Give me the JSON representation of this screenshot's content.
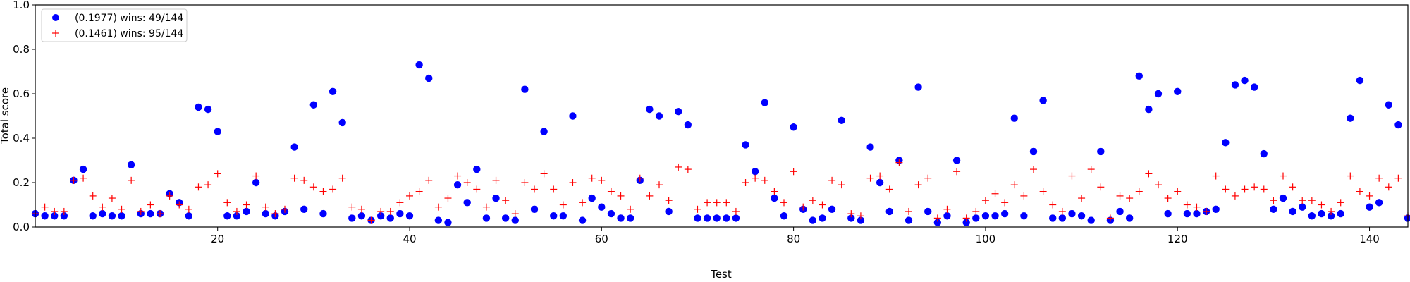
{
  "chart_data": {
    "type": "scatter",
    "xlabel": "Test",
    "ylabel": "Total score",
    "xlim": [
      1,
      144
    ],
    "ylim": [
      0,
      1.0
    ],
    "x_ticks": [
      20,
      40,
      60,
      80,
      100,
      120,
      140
    ],
    "y_ticks": [
      0.0,
      0.2,
      0.4,
      0.6,
      0.8,
      1.0
    ],
    "x_tick_labels": [
      "20",
      "40",
      "60",
      "80",
      "100",
      "120",
      "140"
    ],
    "y_tick_labels": [
      "0.0",
      "0.2",
      "0.4",
      "0.6",
      "0.8",
      "1.0"
    ],
    "grid": false,
    "legend_position": "top-left",
    "legend": [
      {
        "label": "(0.1977) wins: 49/144",
        "marker": "circle",
        "color": "#0000ff"
      },
      {
        "label": "(0.1461) wins: 95/144",
        "marker": "plus",
        "color": "#ff0000"
      }
    ],
    "series": [
      {
        "label": "(0.1977) wins: 49/144",
        "marker": "circle",
        "color": "#0000ff",
        "x": [
          1,
          2,
          3,
          4,
          5,
          6,
          7,
          8,
          9,
          10,
          11,
          12,
          13,
          14,
          15,
          16,
          17,
          18,
          19,
          20,
          21,
          22,
          23,
          24,
          25,
          26,
          27,
          28,
          29,
          30,
          31,
          32,
          33,
          34,
          35,
          36,
          37,
          38,
          39,
          40,
          41,
          42,
          43,
          44,
          45,
          46,
          47,
          48,
          49,
          50,
          51,
          52,
          53,
          54,
          55,
          56,
          57,
          58,
          59,
          60,
          61,
          62,
          63,
          64,
          65,
          66,
          67,
          68,
          69,
          70,
          71,
          72,
          73,
          74,
          75,
          76,
          77,
          78,
          79,
          80,
          81,
          82,
          83,
          84,
          85,
          86,
          87,
          88,
          89,
          90,
          91,
          92,
          93,
          94,
          95,
          96,
          97,
          98,
          99,
          100,
          101,
          102,
          103,
          104,
          105,
          106,
          107,
          108,
          109,
          110,
          111,
          112,
          113,
          114,
          115,
          116,
          117,
          118,
          119,
          120,
          121,
          122,
          123,
          124,
          125,
          126,
          127,
          128,
          129,
          130,
          131,
          132,
          133,
          134,
          135,
          136,
          137,
          138,
          139,
          140,
          141,
          142,
          143,
          144
        ],
        "y": [
          0.06,
          0.05,
          0.05,
          0.05,
          0.21,
          0.26,
          0.05,
          0.06,
          0.05,
          0.05,
          0.28,
          0.06,
          0.06,
          0.06,
          0.15,
          0.11,
          0.05,
          0.54,
          0.53,
          0.43,
          0.05,
          0.05,
          0.07,
          0.2,
          0.06,
          0.05,
          0.07,
          0.36,
          0.08,
          0.55,
          0.06,
          0.61,
          0.47,
          0.04,
          0.05,
          0.03,
          0.05,
          0.04,
          0.06,
          0.05,
          0.73,
          0.67,
          0.03,
          0.02,
          0.19,
          0.11,
          0.26,
          0.04,
          0.13,
          0.04,
          0.03,
          0.62,
          0.08,
          0.43,
          0.05,
          0.05,
          0.5,
          0.03,
          0.13,
          0.09,
          0.06,
          0.04,
          0.04,
          0.21,
          0.53,
          0.5,
          0.07,
          0.52,
          0.46,
          0.04,
          0.04,
          0.04,
          0.04,
          0.04,
          0.37,
          0.25,
          0.56,
          0.13,
          0.05,
          0.45,
          0.08,
          0.03,
          0.04,
          0.08,
          0.48,
          0.04,
          0.03,
          0.36,
          0.2,
          0.07,
          0.3,
          0.03,
          0.63,
          0.07,
          0.02,
          0.05,
          0.3,
          0.02,
          0.04,
          0.05,
          0.05,
          0.06,
          0.49,
          0.05,
          0.34,
          0.57,
          0.04,
          0.04,
          0.06,
          0.05,
          0.03,
          0.34,
          0.03,
          0.07,
          0.04,
          0.68,
          0.53,
          0.6,
          0.06,
          0.61,
          0.06,
          0.06,
          0.07,
          0.08,
          0.38,
          0.64,
          0.66,
          0.63,
          0.33,
          0.08,
          0.13,
          0.07,
          0.09,
          0.05,
          0.06,
          0.05,
          0.06,
          0.49,
          0.66,
          0.09,
          0.11,
          0.55,
          0.46,
          0.04
        ]
      },
      {
        "label": "(0.1461) wins: 95/144",
        "marker": "plus",
        "color": "#ff0000",
        "x": [
          1,
          2,
          3,
          4,
          5,
          6,
          7,
          8,
          9,
          10,
          11,
          12,
          13,
          14,
          15,
          16,
          17,
          18,
          19,
          20,
          21,
          22,
          23,
          24,
          25,
          26,
          27,
          28,
          29,
          30,
          31,
          32,
          33,
          34,
          35,
          36,
          37,
          38,
          39,
          40,
          41,
          42,
          43,
          44,
          45,
          46,
          47,
          48,
          49,
          50,
          51,
          52,
          53,
          54,
          55,
          56,
          57,
          58,
          59,
          60,
          61,
          62,
          63,
          64,
          65,
          66,
          67,
          68,
          69,
          70,
          71,
          72,
          73,
          74,
          75,
          76,
          77,
          78,
          79,
          80,
          81,
          82,
          83,
          84,
          85,
          86,
          87,
          88,
          89,
          90,
          91,
          92,
          93,
          94,
          95,
          96,
          97,
          98,
          99,
          100,
          101,
          102,
          103,
          104,
          105,
          106,
          107,
          108,
          109,
          110,
          111,
          112,
          113,
          114,
          115,
          116,
          117,
          118,
          119,
          120,
          121,
          122,
          123,
          124,
          125,
          126,
          127,
          128,
          129,
          130,
          131,
          132,
          133,
          134,
          135,
          136,
          137,
          138,
          139,
          140,
          141,
          142,
          143,
          144
        ],
        "y": [
          0.06,
          0.09,
          0.07,
          0.07,
          0.21,
          0.22,
          0.14,
          0.09,
          0.13,
          0.08,
          0.21,
          0.07,
          0.1,
          0.06,
          0.14,
          0.1,
          0.08,
          0.18,
          0.19,
          0.24,
          0.11,
          0.07,
          0.1,
          0.23,
          0.09,
          0.06,
          0.08,
          0.22,
          0.21,
          0.18,
          0.16,
          0.17,
          0.22,
          0.09,
          0.08,
          0.03,
          0.07,
          0.07,
          0.11,
          0.14,
          0.16,
          0.21,
          0.09,
          0.13,
          0.23,
          0.2,
          0.17,
          0.09,
          0.21,
          0.12,
          0.06,
          0.2,
          0.17,
          0.24,
          0.17,
          0.1,
          0.2,
          0.11,
          0.22,
          0.21,
          0.16,
          0.14,
          0.08,
          0.22,
          0.14,
          0.19,
          0.12,
          0.27,
          0.26,
          0.08,
          0.11,
          0.11,
          0.11,
          0.07,
          0.2,
          0.22,
          0.21,
          0.16,
          0.11,
          0.25,
          0.09,
          0.12,
          0.1,
          0.21,
          0.19,
          0.06,
          0.05,
          0.22,
          0.23,
          0.17,
          0.29,
          0.07,
          0.19,
          0.22,
          0.04,
          0.08,
          0.25,
          0.04,
          0.07,
          0.12,
          0.15,
          0.11,
          0.19,
          0.14,
          0.26,
          0.16,
          0.1,
          0.07,
          0.23,
          0.13,
          0.26,
          0.18,
          0.04,
          0.14,
          0.13,
          0.16,
          0.24,
          0.19,
          0.13,
          0.16,
          0.1,
          0.09,
          0.07,
          0.23,
          0.17,
          0.14,
          0.17,
          0.18,
          0.17,
          0.12,
          0.23,
          0.18,
          0.12,
          0.12,
          0.1,
          0.07,
          0.11,
          0.23,
          0.16,
          0.14,
          0.22,
          0.18,
          0.22,
          0.05
        ]
      }
    ]
  }
}
